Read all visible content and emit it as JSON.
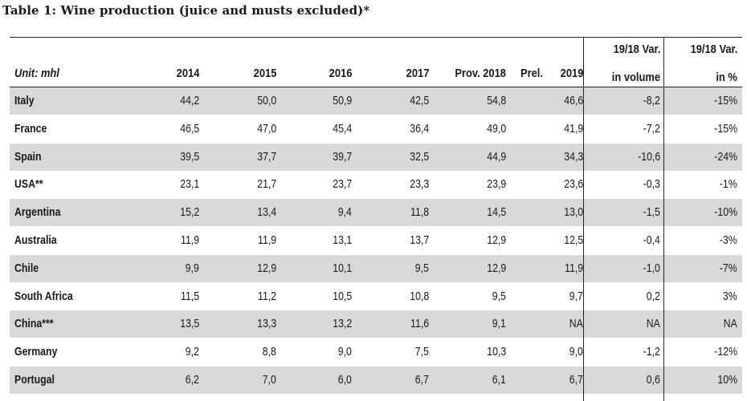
{
  "title": "Table 1: Wine production (juice and musts excluded)*",
  "header": {
    "unit": "Unit: mhl",
    "years": [
      "2014",
      "2015",
      "2016",
      "2017",
      "Prov. 2018"
    ],
    "prel": "Prel.",
    "year2019": "2019",
    "var_volume_top": "19/18 Var.",
    "var_volume_bottom": "in volume",
    "var_pct_top": "19/18 Var.",
    "var_pct_bottom": "in %"
  },
  "rows": [
    {
      "country": "Italy",
      "values": [
        "44,2",
        "50,0",
        "50,9",
        "42,5",
        "54,8",
        "46,6",
        "-8,2",
        "-15%"
      ]
    },
    {
      "country": "France",
      "values": [
        "46,5",
        "47,0",
        "45,4",
        "36,4",
        "49,0",
        "41,9",
        "-7,2",
        "-15%"
      ]
    },
    {
      "country": "Spain",
      "values": [
        "39,5",
        "37,7",
        "39,7",
        "32,5",
        "44,9",
        "34,3",
        "-10,6",
        "-24%"
      ]
    },
    {
      "country": "USA**",
      "values": [
        "23,1",
        "21,7",
        "23,7",
        "23,3",
        "23,9",
        "23,6",
        "-0,3",
        "-1%"
      ]
    },
    {
      "country": "Argentina",
      "values": [
        "15,2",
        "13,4",
        "9,4",
        "11,8",
        "14,5",
        "13,0",
        "-1,5",
        "-10%"
      ]
    },
    {
      "country": "Australia",
      "values": [
        "11,9",
        "11,9",
        "13,1",
        "13,7",
        "12,9",
        "12,5",
        "-0,4",
        "-3%"
      ]
    },
    {
      "country": "Chile",
      "values": [
        "9,9",
        "12,9",
        "10,1",
        "9,5",
        "12,9",
        "11,9",
        "-1,0",
        "-7%"
      ]
    },
    {
      "country": "South Africa",
      "values": [
        "11,5",
        "11,2",
        "10,5",
        "10,8",
        "9,5",
        "9,7",
        "0,2",
        "3%"
      ]
    },
    {
      "country": "China***",
      "values": [
        "13,5",
        "13,3",
        "13,2",
        "11,6",
        "9,1",
        "NA",
        "NA",
        "NA"
      ]
    },
    {
      "country": "Germany",
      "values": [
        "9,2",
        "8,8",
        "9,0",
        "7,5",
        "10,3",
        "9,0",
        "-1,2",
        "-12%"
      ]
    },
    {
      "country": "Portugal",
      "values": [
        "6,2",
        "7,0",
        "6,0",
        "6,7",
        "6,1",
        "6,7",
        "0,6",
        "10%"
      ]
    }
  ]
}
